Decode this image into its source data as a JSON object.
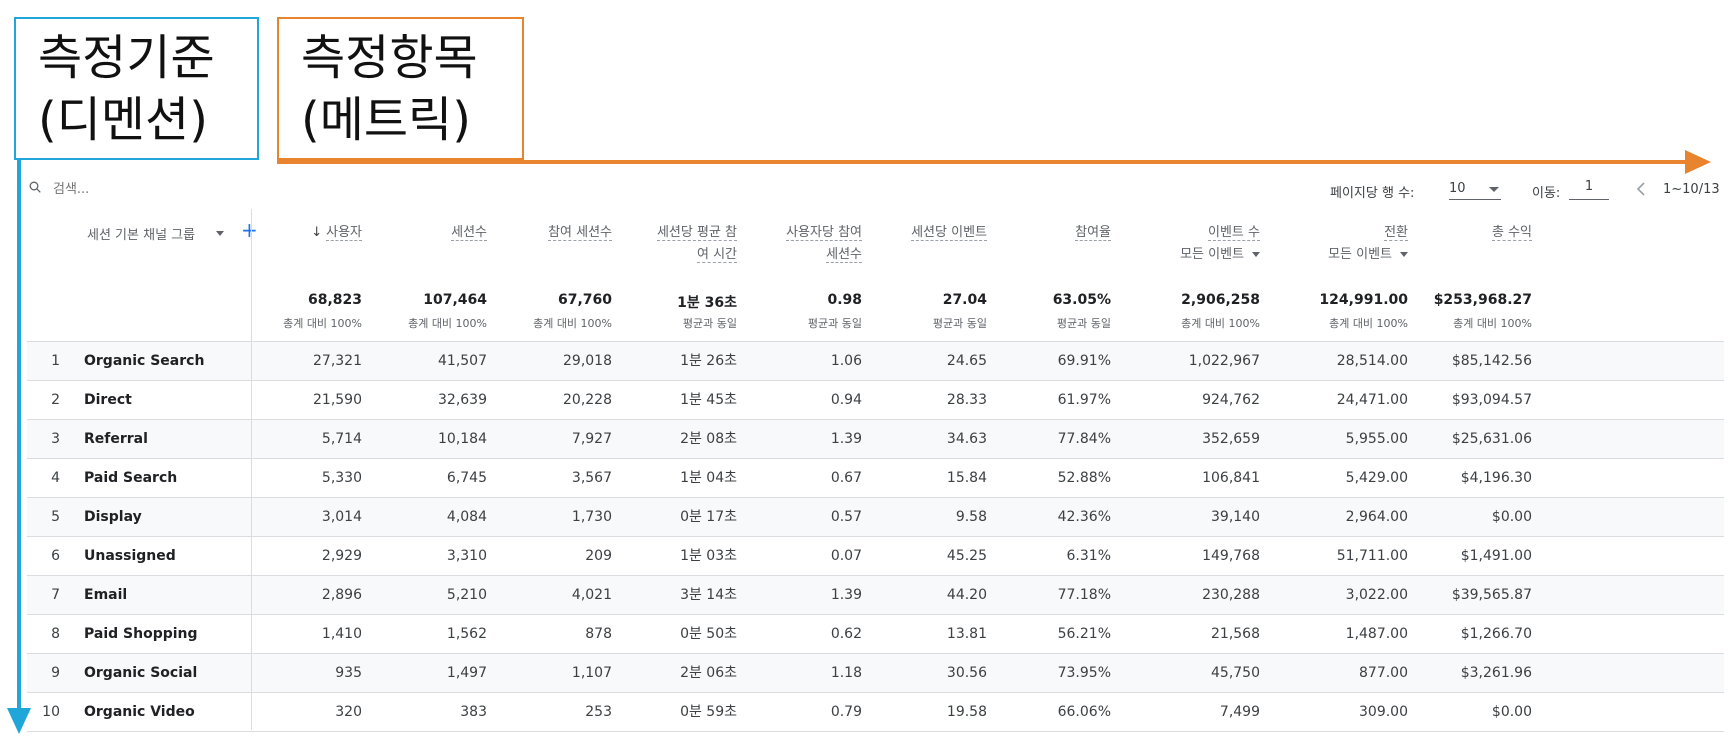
{
  "callouts": {
    "dimension": {
      "line1": "측정기준",
      "line2": "(디멘션)"
    },
    "metric": {
      "line1": "측정항목",
      "line2": "(메트릭)"
    }
  },
  "toolbar": {
    "search_placeholder": "검색...",
    "rows_per_page_label": "페이지당 행 수:",
    "rows_per_page_value": "10",
    "goto_label": "이동:",
    "goto_value": "1",
    "page_range": "1~10/13"
  },
  "table": {
    "dimension_header": "세션 기본 채널 그룹",
    "columns": [
      {
        "label": "사용자",
        "sub": "",
        "line2": "",
        "total": "68,823",
        "pct": "총계 대비 100%"
      },
      {
        "label": "세션수",
        "sub": "",
        "line2": "",
        "total": "107,464",
        "pct": "총계 대비 100%"
      },
      {
        "label": "참여 세션수",
        "sub": "",
        "line2": "",
        "total": "67,760",
        "pct": "총계 대비 100%"
      },
      {
        "label": "세션당 평균 참",
        "sub": "",
        "line2": "여 시간",
        "total": "1분 36초",
        "pct": "평균과 동일"
      },
      {
        "label": "사용자당 참여",
        "sub": "",
        "line2": "세션수",
        "total": "0.98",
        "pct": "평균과 동일"
      },
      {
        "label": "세션당 이벤트",
        "sub": "",
        "line2": "",
        "total": "27.04",
        "pct": "평균과 동일"
      },
      {
        "label": "참여율",
        "sub": "",
        "line2": "",
        "total": "63.05%",
        "pct": "평균과 동일"
      },
      {
        "label": "이벤트 수",
        "sub": "모든 이벤트",
        "line2": "",
        "total": "2,906,258",
        "pct": "총계 대비 100%"
      },
      {
        "label": "전환",
        "sub": "모든 이벤트",
        "line2": "",
        "total": "124,991.00",
        "pct": "총계 대비 100%"
      },
      {
        "label": "총 수익",
        "sub": "",
        "line2": "",
        "total": "$253,968.27",
        "pct": "총계 대비 100%"
      }
    ],
    "rows": [
      {
        "idx": "1",
        "name": "Organic Search",
        "values": [
          "27,321",
          "41,507",
          "29,018",
          "1분 26초",
          "1.06",
          "24.65",
          "69.91%",
          "1,022,967",
          "28,514.00",
          "$85,142.56"
        ]
      },
      {
        "idx": "2",
        "name": "Direct",
        "values": [
          "21,590",
          "32,639",
          "20,228",
          "1분 45초",
          "0.94",
          "28.33",
          "61.97%",
          "924,762",
          "24,471.00",
          "$93,094.57"
        ]
      },
      {
        "idx": "3",
        "name": "Referral",
        "values": [
          "5,714",
          "10,184",
          "7,927",
          "2분 08초",
          "1.39",
          "34.63",
          "77.84%",
          "352,659",
          "5,955.00",
          "$25,631.06"
        ]
      },
      {
        "idx": "4",
        "name": "Paid Search",
        "values": [
          "5,330",
          "6,745",
          "3,567",
          "1분 04초",
          "0.67",
          "15.84",
          "52.88%",
          "106,841",
          "5,429.00",
          "$4,196.30"
        ]
      },
      {
        "idx": "5",
        "name": "Display",
        "values": [
          "3,014",
          "4,084",
          "1,730",
          "0분 17초",
          "0.57",
          "9.58",
          "42.36%",
          "39,140",
          "2,964.00",
          "$0.00"
        ]
      },
      {
        "idx": "6",
        "name": "Unassigned",
        "values": [
          "2,929",
          "3,310",
          "209",
          "1분 03초",
          "0.07",
          "45.25",
          "6.31%",
          "149,768",
          "51,711.00",
          "$1,491.00"
        ]
      },
      {
        "idx": "7",
        "name": "Email",
        "values": [
          "2,896",
          "5,210",
          "4,021",
          "3분 14초",
          "1.39",
          "44.20",
          "77.18%",
          "230,288",
          "3,022.00",
          "$39,565.87"
        ]
      },
      {
        "idx": "8",
        "name": "Paid Shopping",
        "values": [
          "1,410",
          "1,562",
          "878",
          "0분 50초",
          "0.62",
          "13.81",
          "56.21%",
          "21,568",
          "1,487.00",
          "$1,266.70"
        ]
      },
      {
        "idx": "9",
        "name": "Organic Social",
        "values": [
          "935",
          "1,497",
          "1,107",
          "2분 06초",
          "1.18",
          "30.56",
          "73.95%",
          "45,750",
          "877.00",
          "$3,261.96"
        ]
      },
      {
        "idx": "10",
        "name": "Organic Video",
        "values": [
          "320",
          "383",
          "253",
          "0분 59초",
          "0.79",
          "19.58",
          "66.06%",
          "7,499",
          "309.00",
          "$0.00"
        ]
      }
    ]
  },
  "colors": {
    "dimension_accent": "#20a6d8",
    "metric_accent": "#e8832e",
    "link_blue": "#1a73e8"
  }
}
